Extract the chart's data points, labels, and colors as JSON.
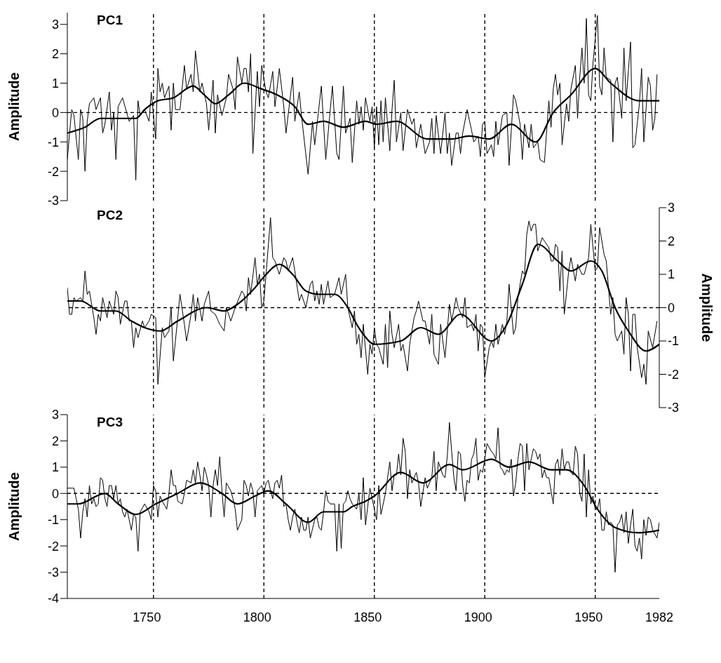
{
  "chart_data": [
    {
      "type": "line",
      "title": "PC1",
      "ylabel": "Amplitude",
      "xlim": [
        1714,
        1982
      ],
      "xticks": [
        1750,
        1800,
        1850,
        1900,
        1950,
        1982
      ],
      "ylim": [
        -3,
        3.4
      ],
      "yticks": [
        -3,
        -2,
        -1,
        0,
        1,
        2,
        3
      ],
      "tick_labels": "y",
      "line_style": "solid",
      "ref_lines": [
        {
          "axis": "y",
          "value": 0,
          "line_style": "dashed",
          "color": "#000000"
        },
        {
          "axis": "x",
          "value": 1753,
          "line_style": "dashed",
          "color": "#000000"
        },
        {
          "axis": "x",
          "value": 1803,
          "line_style": "dashed",
          "color": "#000000"
        },
        {
          "axis": "x",
          "value": 1853,
          "line_style": "dashed",
          "color": "#000000"
        },
        {
          "axis": "x",
          "value": 1903,
          "line_style": "dashed",
          "color": "#000000"
        },
        {
          "axis": "x",
          "value": 1953,
          "line_style": "dashed",
          "color": "#000000"
        }
      ],
      "series": [
        {
          "type": "line",
          "color": "#000000",
          "x": [
            1714,
            1715,
            1716,
            1717,
            1719,
            1720,
            1721,
            1722,
            1723,
            1724,
            1726,
            1727,
            1729,
            1730,
            1731,
            1733,
            1734,
            1735,
            1736,
            1737,
            1739,
            1742,
            1744,
            1745,
            1746,
            1747,
            1749,
            1751,
            1752,
            1754,
            1755,
            1756,
            1757,
            1758,
            1760,
            1761,
            1762,
            1763,
            1765,
            1767,
            1768,
            1770,
            1771,
            1772,
            1774,
            1775,
            1777,
            1778,
            1780,
            1781,
            1782,
            1784,
            1786,
            1787,
            1789,
            1790,
            1791,
            1793,
            1794,
            1795,
            1796,
            1797,
            1798,
            1800,
            1801,
            1802,
            1804,
            1805,
            1807,
            1808,
            1810,
            1812,
            1813,
            1816,
            1817,
            1819,
            1820,
            1823,
            1825,
            1826,
            1829,
            1831,
            1834,
            1836,
            1837,
            1839,
            1840,
            1842,
            1843,
            1845,
            1846,
            1847,
            1848,
            1849,
            1851,
            1852,
            1853,
            1854,
            1855,
            1856,
            1857,
            1858,
            1860,
            1861,
            1862,
            1863,
            1865,
            1866,
            1868,
            1870,
            1871,
            1872,
            1874,
            1876,
            1878,
            1879,
            1880,
            1881,
            1883,
            1885,
            1886,
            1887,
            1888,
            1890,
            1891,
            1892,
            1893,
            1895,
            1897,
            1898,
            1900,
            1901,
            1902,
            1903,
            1904,
            1906,
            1907,
            1908,
            1909,
            1911,
            1913,
            1914,
            1916,
            1917,
            1919,
            1920,
            1921,
            1923,
            1924,
            1925,
            1927,
            1928,
            1930,
            1932,
            1933,
            1934,
            1935,
            1936,
            1937,
            1938,
            1940,
            1941,
            1942,
            1944,
            1945,
            1946,
            1947,
            1948,
            1949,
            1950,
            1951,
            1952,
            1954,
            1955,
            1956,
            1957,
            1958,
            1960,
            1961,
            1962,
            1963,
            1965,
            1966,
            1967,
            1969,
            1970,
            1971,
            1973,
            1974,
            1975,
            1977,
            1978,
            1979,
            1980,
            1981
          ],
          "values": [
            -1.6,
            -0.7,
            0.1,
            -0.1,
            -1.6,
            0.1,
            -0.2,
            -2.0,
            -0.3,
            0.3,
            0.5,
            0.1,
            0.5,
            -0.7,
            -0.4,
            0.7,
            -0.6,
            0,
            -1.6,
            0.2,
            0.5,
            -0.3,
            -0.1,
            -2.3,
            0.4,
            -0.1,
            0.1,
            -0.3,
            0.7,
            -0.9,
            1.5,
            0.7,
            1.0,
            0.5,
            0.9,
            -0.6,
            1.0,
            0.1,
            0.1,
            1.6,
            0.8,
            1.3,
            0.7,
            2.1,
            0.7,
            1.0,
            0.3,
            -0.6,
            1.1,
            -0.7,
            0.6,
            -0.1,
            0.5,
            1.3,
            0.8,
            0.1,
            1.9,
            1.0,
            1.5,
            1.5,
            0.7,
            2.0,
            -1.4,
            1.4,
            0.2,
            1.6,
            0.7,
            0.5,
            1.4,
            0.2,
            1.5,
            0.2,
            -0.7,
            1.2,
            -0.3,
            0.7,
            -0.1,
            -2.1,
            -0.3,
            -1.1,
            0.9,
            -1.6,
            0.9,
            -1.4,
            -1.6,
            0.9,
            -0.7,
            -0.2,
            -1.7,
            0.4,
            -0.4,
            0.2,
            -0.6,
            0.5,
            -0.3,
            0.2,
            -1.2,
            0.2,
            -1.1,
            0.4,
            -1.0,
            0.5,
            -1.3,
            0.1,
            1.1,
            -1.0,
            0.0,
            -1.3,
            0.1,
            -0.4,
            -0.2,
            -1.2,
            -0.4,
            -1.4,
            -1.0,
            -0.2,
            -1.4,
            -0.1,
            -1.4,
            0.0,
            -1.4,
            -0.7,
            -1.8,
            -0.7,
            -0.7,
            -1.4,
            -0.7,
            0.1,
            -0.6,
            -1.0,
            -0.8,
            -1.5,
            -0.4,
            -0.3,
            -1.4,
            -1.1,
            -1.5,
            -0.3,
            -1.1,
            -0.1,
            0.0,
            -1.8,
            0.6,
            0.4,
            -0.4,
            -1.6,
            -0.4,
            -1.2,
            -0.4,
            -1.2,
            -1.0,
            -1.6,
            -1.7,
            0.4,
            -0.5,
            0.8,
            1.3,
            0.6,
            1.0,
            -1.1,
            0.3,
            -0.3,
            0.8,
            1.6,
            -0.2,
            1.2,
            2.2,
            1.0,
            3.2,
            0.6,
            0.4,
            1.7,
            3.3,
            0.9,
            0.6,
            2.2,
            1.2,
            1.1,
            -1.0,
            1.0,
            1.2,
            -0.2,
            2.2,
            0.4,
            2.4,
            -1.2,
            -1.1,
            0.3,
            1.5,
            -1.0,
            1.2,
            0.9,
            -0.6,
            -0.2,
            1.3
          ]
        },
        {
          "type": "line",
          "color": "#000000",
          "x": [
            1714,
            1722,
            1729,
            1737,
            1745,
            1749,
            1755,
            1762,
            1771,
            1776,
            1781,
            1787,
            1794,
            1802,
            1809,
            1817,
            1823,
            1830,
            1839,
            1849,
            1854,
            1863,
            1877,
            1888,
            1896,
            1905,
            1915,
            1926,
            1934,
            1942,
            1953,
            1960,
            1973,
            1982
          ],
          "values": [
            -0.7,
            -0.5,
            -0.2,
            -0.2,
            -0.2,
            0.1,
            0.4,
            0.5,
            0.9,
            0.6,
            0.3,
            0.6,
            1.0,
            0.8,
            0.6,
            0.2,
            -0.4,
            -0.3,
            -0.5,
            -0.3,
            -0.4,
            -0.3,
            -0.9,
            -0.9,
            -0.8,
            -0.9,
            -0.4,
            -1.0,
            0.0,
            0.6,
            1.5,
            1.0,
            0.4,
            0.4
          ]
        }
      ]
    },
    {
      "type": "line",
      "title": "PC2",
      "ylabel": "Amplitude",
      "xlim": [
        1714,
        1982
      ],
      "xticks": [
        1750,
        1800,
        1850,
        1900,
        1950,
        1982
      ],
      "ylim": [
        -3,
        3
      ],
      "yticks": [
        -3,
        -2,
        -1,
        0,
        1,
        2,
        3
      ],
      "tick_labels": "y",
      "line_style": "solid",
      "ref_lines": [
        {
          "axis": "y",
          "value": 0,
          "line_style": "dashed",
          "color": "#000000"
        },
        {
          "axis": "x",
          "value": 1753,
          "line_style": "dashed",
          "color": "#000000"
        },
        {
          "axis": "x",
          "value": 1803,
          "line_style": "dashed",
          "color": "#000000"
        },
        {
          "axis": "x",
          "value": 1853,
          "line_style": "dashed",
          "color": "#000000"
        },
        {
          "axis": "x",
          "value": 1903,
          "line_style": "dashed",
          "color": "#000000"
        },
        {
          "axis": "x",
          "value": 1953,
          "line_style": "dashed",
          "color": "#000000"
        }
      ],
      "series": [
        {
          "type": "line",
          "color": "#000000",
          "x": [
            1714,
            1715,
            1716,
            1717,
            1718,
            1720,
            1721,
            1722,
            1723,
            1724,
            1726,
            1727,
            1728,
            1729,
            1730,
            1732,
            1733,
            1735,
            1736,
            1737,
            1738,
            1740,
            1741,
            1742,
            1743,
            1744,
            1745,
            1746,
            1748,
            1749,
            1751,
            1752,
            1754,
            1755,
            1757,
            1758,
            1760,
            1761,
            1762,
            1764,
            1765,
            1767,
            1768,
            1770,
            1771,
            1772,
            1773,
            1775,
            1776,
            1778,
            1779,
            1781,
            1783,
            1785,
            1786,
            1788,
            1790,
            1793,
            1794,
            1795,
            1796,
            1797,
            1799,
            1800,
            1801,
            1802,
            1803,
            1806,
            1807,
            1808,
            1810,
            1812,
            1813,
            1814,
            1816,
            1817,
            1819,
            1820,
            1822,
            1824,
            1825,
            1826,
            1827,
            1828,
            1829,
            1830,
            1832,
            1833,
            1835,
            1837,
            1838,
            1840,
            1841,
            1843,
            1844,
            1845,
            1846,
            1847,
            1848,
            1850,
            1851,
            1852,
            1853,
            1854,
            1855,
            1857,
            1858,
            1859,
            1860,
            1861,
            1862,
            1864,
            1865,
            1866,
            1868,
            1869,
            1871,
            1872,
            1873,
            1875,
            1876,
            1878,
            1879,
            1880,
            1882,
            1883,
            1884,
            1885,
            1887,
            1888,
            1890,
            1891,
            1893,
            1894,
            1895,
            1897,
            1898,
            1899,
            1900,
            1901,
            1902,
            1903,
            1905,
            1906,
            1907,
            1908,
            1909,
            1911,
            1912,
            1913,
            1914,
            1916,
            1917,
            1918,
            1920,
            1921,
            1922,
            1923,
            1924,
            1925,
            1926,
            1927,
            1929,
            1930,
            1932,
            1933,
            1934,
            1935,
            1936,
            1937,
            1938,
            1939,
            1941,
            1942,
            1944,
            1945,
            1947,
            1948,
            1950,
            1951,
            1953,
            1954,
            1955,
            1957,
            1958,
            1959,
            1960,
            1961,
            1962,
            1963,
            1965,
            1966,
            1967,
            1968,
            1969,
            1970,
            1971,
            1972,
            1974,
            1975,
            1976,
            1977,
            1979,
            1980,
            1981
          ],
          "values": [
            0.6,
            -0.2,
            -0.2,
            0.3,
            0.2,
            0.3,
            0.2,
            1.1,
            0.4,
            0.5,
            -0.3,
            -0.8,
            -0.2,
            -0.4,
            0.3,
            -0.3,
            0.2,
            -0.2,
            0.5,
            0.3,
            -0.5,
            0.2,
            0.2,
            -0.4,
            -0.4,
            -1.2,
            -0.6,
            -0.9,
            -0.4,
            -0.6,
            -0.4,
            -0.2,
            -0.3,
            -2.3,
            -0.6,
            -0.9,
            -0.7,
            0.0,
            -1.6,
            -0.3,
            0.4,
            -0.5,
            -1.0,
            -0.2,
            0.4,
            -0.4,
            0.3,
            -0.4,
            0.1,
            0.5,
            -0.1,
            -0.2,
            -0.5,
            -0.7,
            0.0,
            -0.4,
            0.0,
            0.5,
            0.4,
            -0.1,
            0.9,
            0.4,
            1.5,
            0.7,
            1.0,
            0.0,
            0.2,
            2.7,
            1.5,
            1.4,
            1.0,
            1.5,
            1.4,
            1.1,
            1.5,
            1.1,
            0.2,
            0.4,
            0.0,
            0.7,
            0.8,
            0.2,
            0.5,
            0.1,
            0.7,
            0.1,
            0.8,
            0.3,
            0.4,
            0.9,
            0.4,
            1.0,
            0.0,
            -0.6,
            -0.1,
            -1.1,
            -0.8,
            -1.5,
            -0.5,
            -2.0,
            -1.1,
            -1.4,
            -0.6,
            -1.1,
            -1.2,
            -1.7,
            -0.5,
            -1.8,
            -0.1,
            -0.8,
            -1.2,
            -0.5,
            -1.3,
            -1.1,
            -1.9,
            -1.1,
            -0.3,
            -0.1,
            0.2,
            -0.4,
            -0.4,
            -1.1,
            -0.2,
            -1.4,
            -1.7,
            -0.5,
            -1.0,
            -1.5,
            0.1,
            -0.4,
            0.3,
            0.0,
            -0.3,
            0.3,
            -0.6,
            -0.5,
            -0.7,
            -0.2,
            -1.3,
            -0.5,
            -0.6,
            -2.1,
            -1.2,
            -1.0,
            -1.2,
            -0.5,
            -1.1,
            -0.5,
            -0.8,
            -0.4,
            0.7,
            -0.8,
            -0.6,
            0.3,
            1.1,
            1.0,
            2.2,
            2.6,
            2.3,
            2.5,
            2.5,
            1.7,
            2.1,
            2.0,
            1.8,
            1.4,
            1.4,
            1.9,
            1.8,
            0.5,
            1.7,
            -0.2,
            1.1,
            1.5,
            0.8,
            1.3,
            1.0,
            1.0,
            1.5,
            2.5,
            1.1,
            1.2,
            2.4,
            1.6,
            1.4,
            0.6,
            -0.2,
            0.3,
            -0.8,
            -1.0,
            -0.7,
            -1.4,
            0.3,
            -0.2,
            -1.9,
            -0.2,
            -0.2,
            -1.2,
            -2.1,
            -1.7,
            -2.3,
            -0.7,
            -1.2,
            -0.8,
            -0.4
          ]
        },
        {
          "type": "line",
          "color": "#000000",
          "x": [
            1714,
            1720,
            1729,
            1736,
            1743,
            1749,
            1756,
            1764,
            1777,
            1785,
            1791,
            1799,
            1804,
            1810,
            1816,
            1822,
            1828,
            1835,
            1841,
            1845,
            1848,
            1853,
            1865,
            1874,
            1882,
            1892,
            1906,
            1913,
            1920,
            1927,
            1936,
            1942,
            1951,
            1956,
            1962,
            1968,
            1976,
            1982
          ],
          "values": [
            0.2,
            0.2,
            -0.1,
            -0.1,
            -0.4,
            -0.6,
            -0.7,
            -0.4,
            0.0,
            -0.1,
            0.1,
            0.6,
            1.0,
            1.3,
            1.0,
            0.5,
            0.4,
            0.4,
            0.0,
            -0.5,
            -0.8,
            -1.1,
            -1.0,
            -0.6,
            -0.8,
            -0.2,
            -1.0,
            -0.5,
            0.7,
            1.9,
            1.4,
            1.1,
            1.4,
            1.1,
            0.0,
            -0.7,
            -1.3,
            -1.1
          ]
        }
      ]
    },
    {
      "type": "line",
      "title": "PC3",
      "ylabel": "Amplitude",
      "xlim": [
        1714,
        1982
      ],
      "xticks": [
        1750,
        1800,
        1850,
        1900,
        1950,
        1982
      ],
      "ylim": [
        -4,
        3
      ],
      "yticks": [
        -4,
        -3,
        -2,
        -1,
        0,
        1,
        2,
        3
      ],
      "line_style": "solid",
      "ref_lines": [
        {
          "axis": "y",
          "value": 0,
          "line_style": "dashed",
          "color": "#000000"
        },
        {
          "axis": "x",
          "value": 1753,
          "line_style": "dashed",
          "color": "#000000"
        },
        {
          "axis": "x",
          "value": 1803,
          "line_style": "dashed",
          "color": "#000000"
        },
        {
          "axis": "x",
          "value": 1853,
          "line_style": "dashed",
          "color": "#000000"
        },
        {
          "axis": "x",
          "value": 1903,
          "line_style": "dashed",
          "color": "#000000"
        },
        {
          "axis": "x",
          "value": 1953,
          "line_style": "dashed",
          "color": "#000000"
        }
      ],
      "series": [
        {
          "type": "line",
          "color": "#000000",
          "x": [
            1714,
            1716,
            1717,
            1719,
            1720,
            1721,
            1722,
            1723,
            1724,
            1725,
            1726,
            1727,
            1728,
            1729,
            1730,
            1731,
            1732,
            1733,
            1734,
            1735,
            1736,
            1737,
            1738,
            1739,
            1740,
            1741,
            1742,
            1743,
            1744,
            1745,
            1746,
            1747,
            1749,
            1751,
            1752,
            1753,
            1754,
            1755,
            1756,
            1757,
            1759,
            1760,
            1761,
            1762,
            1763,
            1764,
            1766,
            1767,
            1768,
            1770,
            1771,
            1772,
            1773,
            1774,
            1775,
            1776,
            1777,
            1778,
            1779,
            1780,
            1781,
            1782,
            1783,
            1784,
            1785,
            1786,
            1788,
            1789,
            1790,
            1791,
            1793,
            1794,
            1795,
            1796,
            1797,
            1798,
            1799,
            1800,
            1802,
            1803,
            1804,
            1805,
            1806,
            1807,
            1808,
            1809,
            1810,
            1811,
            1812,
            1813,
            1814,
            1815,
            1816,
            1817,
            1818,
            1819,
            1820,
            1821,
            1822,
            1823,
            1824,
            1826,
            1827,
            1828,
            1829,
            1830,
            1831,
            1832,
            1833,
            1834,
            1835,
            1836,
            1837,
            1838,
            1839,
            1840,
            1841,
            1842,
            1843,
            1845,
            1846,
            1847,
            1848,
            1849,
            1851,
            1852,
            1854,
            1855,
            1856,
            1858,
            1860,
            1861,
            1862,
            1863,
            1864,
            1865,
            1866,
            1867,
            1868,
            1869,
            1870,
            1872,
            1873,
            1874,
            1876,
            1877,
            1878,
            1879,
            1880,
            1881,
            1882,
            1884,
            1885,
            1886,
            1887,
            1888,
            1889,
            1890,
            1891,
            1892,
            1893,
            1894,
            1895,
            1896,
            1897,
            1898,
            1899,
            1900,
            1901,
            1902,
            1903,
            1904,
            1906,
            1907,
            1908,
            1909,
            1910,
            1911,
            1912,
            1913,
            1914,
            1915,
            1916,
            1917,
            1918,
            1919,
            1920,
            1921,
            1922,
            1923,
            1925,
            1926,
            1927,
            1928,
            1929,
            1930,
            1931,
            1932,
            1934,
            1935,
            1936,
            1937,
            1938,
            1939,
            1940,
            1941,
            1942,
            1943,
            1944,
            1945,
            1946,
            1947,
            1948,
            1949,
            1950,
            1951,
            1952,
            1953,
            1954,
            1955,
            1956,
            1957,
            1958,
            1959,
            1960,
            1961,
            1962,
            1963,
            1964,
            1965,
            1966,
            1967,
            1968,
            1969,
            1970,
            1971,
            1972,
            1973,
            1974,
            1975,
            1976,
            1977,
            1978,
            1979,
            1981,
            1982
          ],
          "values": [
            0.2,
            0.2,
            0.2,
            -0.6,
            -1.7,
            -0.7,
            -0.2,
            -0.9,
            0.3,
            -0.4,
            -0.2,
            -0.5,
            -0.4,
            0.6,
            0.5,
            -0.2,
            -0.5,
            0.3,
            0.3,
            -0.2,
            0.3,
            -0.4,
            -0.2,
            -0.7,
            -0.9,
            -0.6,
            -1.0,
            -1.4,
            -0.8,
            -0.9,
            -2.2,
            -0.7,
            -0.4,
            -0.7,
            -1.0,
            0.3,
            0.1,
            -0.9,
            -0.1,
            -0.3,
            -0.6,
            0.0,
            0.9,
            0.3,
            0.3,
            -0.3,
            -0.4,
            0.0,
            0.5,
            0.4,
            0.9,
            0.4,
            1.2,
            0.7,
            0.1,
            1.0,
            0.7,
            0.3,
            -0.9,
            0.3,
            0.9,
            0.3,
            1.4,
            0.1,
            -0.9,
            0.4,
            0.1,
            -0.2,
            -0.6,
            -1.4,
            -1.0,
            0.5,
            0.3,
            -0.1,
            0.4,
            0.1,
            -0.9,
            0.1,
            0.3,
            0.0,
            0.4,
            0.5,
            0.1,
            -0.2,
            0.4,
            0.5,
            0.2,
            0.7,
            -0.5,
            -0.4,
            -1.0,
            -1.4,
            -0.9,
            -0.6,
            -1.1,
            -1.5,
            -0.9,
            -1.4,
            -1.4,
            -0.9,
            -1.7,
            -1.0,
            -0.9,
            -1.3,
            -1.4,
            -0.7,
            0.1,
            -0.3,
            -0.4,
            -0.4,
            -0.4,
            -2.2,
            -0.4,
            -2.1,
            -0.4,
            -0.3,
            0.1,
            -0.2,
            -0.4,
            -0.6,
            0.0,
            -1.0,
            0.6,
            -1.2,
            0.2,
            -0.2,
            -1.0,
            0.3,
            -0.8,
            0.0,
            1.2,
            0.1,
            0.7,
            0.7,
            1.5,
            0.7,
            2.1,
            1.6,
            -0.2,
            0.9,
            0.4,
            0.8,
            0.4,
            -0.5,
            0.6,
            0.2,
            0.4,
            0.6,
            1.6,
            0.1,
            1.2,
            0.7,
            0.6,
            1.4,
            2.7,
            1.6,
            0.6,
            0.1,
            1.6,
            1.5,
            0.3,
            -0.3,
            0.5,
            0.4,
            1.3,
            1.5,
            2.1,
            0.5,
            0.9,
            0.8,
            1.3,
            1.9,
            1.6,
            1.5,
            1.3,
            2.5,
            1.0,
            0.9,
            0.7,
            0.9,
            0.8,
            1.3,
            -0.1,
            0.4,
            1.3,
            1.9,
            1.8,
            0.1,
            1.9,
            0.9,
            1.7,
            1.6,
            1.3,
            1.5,
            0.6,
            0.9,
            0.6,
            0.6,
            -0.4,
            1.1,
            1.3,
            0.7,
            1.7,
            0.9,
            1.2,
            1.2,
            0.8,
            0.7,
            1.8,
            1.5,
            0.0,
            -0.3,
            1.5,
            -0.9,
            0.9,
            -0.4,
            -0.1,
            -0.6,
            -0.6,
            -0.2,
            -1.4,
            -1.4,
            -0.7,
            -1.2,
            -1.1,
            -1.2,
            -3.0,
            -1.2,
            -1.1,
            -0.8,
            -1.5,
            -0.7,
            -1.9,
            -1.2,
            -0.6,
            -2.0,
            -2.2,
            -1.7,
            -2.5,
            -1.0,
            -1.6,
            -0.9,
            -1.0,
            -1.4,
            -1.7,
            -1.1
          ]
        },
        {
          "type": "line",
          "color": "#000000",
          "x": [
            1714,
            1719,
            1731,
            1737,
            1745,
            1754,
            1764,
            1774,
            1784,
            1791,
            1799,
            1805,
            1813,
            1823,
            1830,
            1839,
            1843,
            1849,
            1853,
            1865,
            1875,
            1887,
            1893,
            1906,
            1914,
            1923,
            1933,
            1940,
            1948,
            1954,
            1962,
            1973,
            1982
          ],
          "values": [
            -0.4,
            -0.4,
            0.0,
            -0.4,
            -0.8,
            -0.4,
            0.0,
            0.4,
            0.0,
            -0.4,
            -0.1,
            0.1,
            -0.4,
            -1.1,
            -0.7,
            -0.7,
            -0.5,
            -0.3,
            -0.1,
            0.8,
            0.4,
            1.1,
            0.9,
            1.3,
            1.0,
            1.2,
            0.9,
            0.9,
            0.3,
            -0.6,
            -1.3,
            -1.5,
            -1.4
          ]
        }
      ]
    }
  ]
}
